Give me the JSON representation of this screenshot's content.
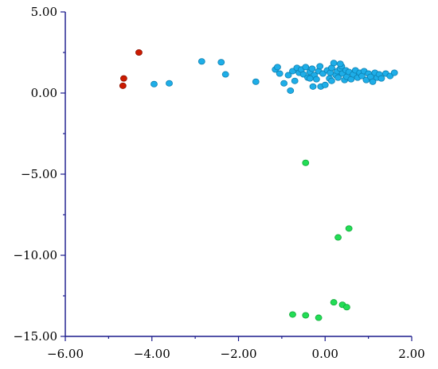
{
  "chart_data": {
    "type": "scatter",
    "title": "",
    "xlabel": "",
    "ylabel": "",
    "xlim": [
      -6,
      2
    ],
    "ylim": [
      -15,
      5
    ],
    "x_ticks": [
      -6,
      -4,
      -2,
      0,
      2
    ],
    "y_ticks": [
      5,
      0,
      -5,
      -10,
      -15
    ],
    "x_tick_labels": [
      "−6.00",
      "−4.00",
      "−2.00",
      "0.00",
      "2.00"
    ],
    "y_tick_labels": [
      "5.00",
      "0.00",
      "−5.00",
      "−10.00",
      "−15.00"
    ],
    "grid": false,
    "legend": "none",
    "series": [
      {
        "color": "#cc1a00",
        "edge": "#8a1000",
        "points": [
          [
            -4.3,
            2.5
          ],
          [
            -4.65,
            0.9
          ],
          [
            -4.67,
            0.45
          ]
        ]
      },
      {
        "color": "#1eaee8",
        "edge": "#0c7fb0",
        "points": [
          [
            -3.95,
            0.55
          ],
          [
            -3.6,
            0.6
          ],
          [
            -2.85,
            1.95
          ],
          [
            -2.4,
            1.9
          ],
          [
            -2.3,
            1.15
          ],
          [
            -1.6,
            0.7
          ],
          [
            -1.15,
            1.45
          ],
          [
            -1.1,
            1.6
          ],
          [
            -1.05,
            1.2
          ],
          [
            -0.95,
            0.6
          ],
          [
            -0.85,
            1.1
          ],
          [
            -0.8,
            0.15
          ],
          [
            -0.75,
            1.35
          ],
          [
            -0.7,
            0.75
          ],
          [
            -0.65,
            1.55
          ],
          [
            -0.6,
            1.25
          ],
          [
            -0.55,
            1.45
          ],
          [
            -0.5,
            1.15
          ],
          [
            -0.45,
            1.6
          ],
          [
            -0.4,
            0.95
          ],
          [
            -0.35,
            1.3
          ],
          [
            -0.3,
            1.5
          ],
          [
            -0.28,
            0.4
          ],
          [
            -0.25,
            1.1
          ],
          [
            -0.2,
            0.85
          ],
          [
            -0.15,
            1.35
          ],
          [
            -0.12,
            1.65
          ],
          [
            -0.1,
            0.4
          ],
          [
            -0.05,
            1.2
          ],
          [
            0.0,
            0.5
          ],
          [
            0.05,
            1.4
          ],
          [
            0.1,
            0.9
          ],
          [
            0.12,
            1.25
          ],
          [
            0.15,
            1.55
          ],
          [
            0.2,
            1.85
          ],
          [
            0.25,
            1.1
          ],
          [
            0.28,
            1.35
          ],
          [
            0.3,
            0.95
          ],
          [
            0.35,
            1.5
          ],
          [
            0.38,
            1.65
          ],
          [
            0.4,
            1.2
          ],
          [
            0.45,
            0.8
          ],
          [
            0.48,
            1.4
          ],
          [
            0.5,
            1.0
          ],
          [
            0.55,
            1.3
          ],
          [
            0.6,
            0.85
          ],
          [
            0.65,
            1.15
          ],
          [
            0.7,
            1.4
          ],
          [
            0.75,
            0.95
          ],
          [
            0.8,
            1.25
          ],
          [
            0.85,
            1.05
          ],
          [
            0.9,
            1.35
          ],
          [
            0.95,
            0.8
          ],
          [
            1.0,
            1.2
          ],
          [
            1.05,
            1.0
          ],
          [
            1.1,
            0.7
          ],
          [
            1.15,
            1.25
          ],
          [
            1.2,
            0.95
          ],
          [
            1.25,
            1.15
          ],
          [
            1.3,
            0.9
          ],
          [
            1.4,
            1.2
          ],
          [
            1.5,
            1.05
          ],
          [
            1.6,
            1.25
          ],
          [
            0.35,
            1.8
          ],
          [
            -0.35,
            0.9
          ],
          [
            0.15,
            0.75
          ]
        ]
      },
      {
        "color": "#22dd55",
        "edge": "#12a83a",
        "points": [
          [
            -0.45,
            -4.3
          ],
          [
            0.55,
            -8.35
          ],
          [
            0.3,
            -8.9
          ],
          [
            0.2,
            -12.9
          ],
          [
            0.4,
            -13.05
          ],
          [
            0.5,
            -13.2
          ],
          [
            -0.75,
            -13.65
          ],
          [
            -0.45,
            -13.7
          ],
          [
            -0.15,
            -13.85
          ]
        ]
      }
    ]
  }
}
